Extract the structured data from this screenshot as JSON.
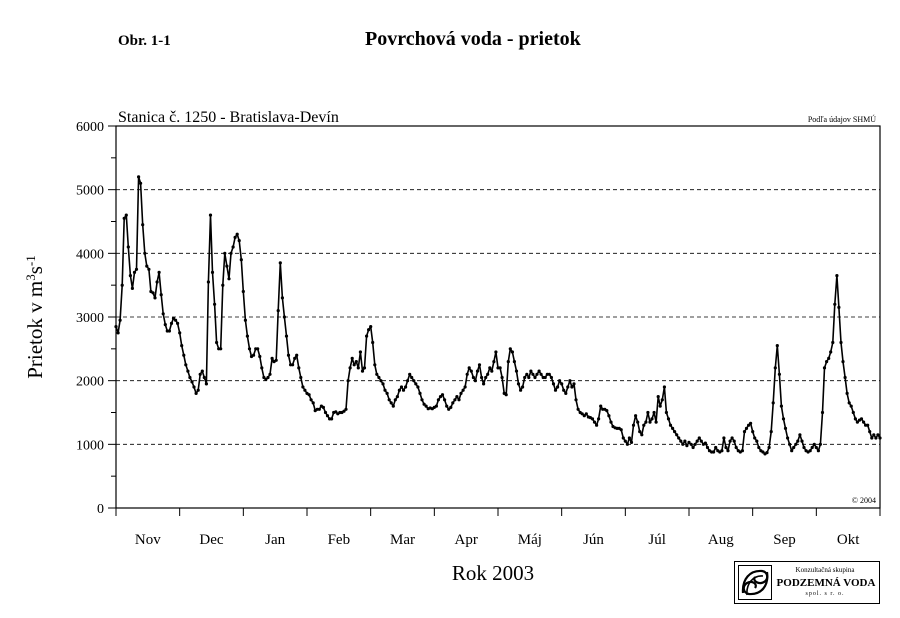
{
  "figure_label": "Obr. 1-1",
  "title": "Povrchová voda - prietok",
  "chart_data": {
    "type": "line",
    "title": "Povrchová voda - prietok",
    "subtitle": "Stanica č. 1250 - Bratislava-Devín",
    "source_note": "Podľa údajov SHMÚ",
    "copyright": "© 2004",
    "xlabel": "Rok 2003",
    "ylabel_main": "Prietok v m",
    "ylabel_sup1": "3",
    "ylabel_mid": "s",
    "ylabel_sup2": "-1",
    "ylim": [
      0,
      6000
    ],
    "yticks": [
      0,
      1000,
      2000,
      3000,
      4000,
      5000,
      6000
    ],
    "ytick_labels": [
      "0",
      "1000",
      "2000",
      "3000",
      "4000",
      "5000",
      "6000"
    ],
    "grid": "horizontal dashed at 1000–5000",
    "months": [
      "Nov",
      "Dec",
      "Jan",
      "Feb",
      "Mar",
      "Apr",
      "Máj",
      "Jún",
      "Júl",
      "Aug",
      "Sep",
      "Okt"
    ],
    "series": [
      {
        "values": [
          2850,
          2750,
          2950,
          3500,
          4550,
          4600,
          4100,
          3650,
          3450,
          3700,
          3750,
          5200,
          5100,
          4450,
          4000,
          3800,
          3750,
          3400,
          3380,
          3300,
          3550,
          3700,
          3350,
          3050,
          2880,
          2780,
          2780,
          2900,
          2980,
          2950,
          2900,
          2750,
          2550,
          2400,
          2250,
          2150,
          2050,
          1980,
          1900,
          1800,
          1850,
          2100,
          2150,
          2050,
          1950,
          3550,
          4600,
          3700,
          3200,
          2600,
          2500,
          2500,
          3500,
          4000,
          3800,
          3600,
          4000,
          4100,
          4250,
          4300,
          4200,
          3900,
          3400,
          2950,
          2700,
          2500,
          2380,
          2400,
          2500,
          2500,
          2380,
          2200,
          2050,
          2020,
          2050,
          2100,
          2350,
          2300,
          2320,
          3100,
          3850,
          3300,
          3000,
          2700,
          2400,
          2250,
          2250,
          2350,
          2400,
          2200,
          2050,
          1900,
          1850,
          1800,
          1780,
          1700,
          1650,
          1530,
          1550,
          1550,
          1600,
          1580,
          1500,
          1450,
          1400,
          1400,
          1500,
          1510,
          1480,
          1500,
          1500,
          1520,
          1550,
          2000,
          2200,
          2350,
          2250,
          2300,
          2200,
          2450,
          2150,
          2200,
          2700,
          2800,
          2850,
          2600,
          2250,
          2100,
          2050,
          2000,
          1950,
          1850,
          1800,
          1700,
          1650,
          1600,
          1700,
          1750,
          1850,
          1900,
          1850,
          1900,
          2000,
          2100,
          2050,
          2000,
          1950,
          1900,
          1800,
          1700,
          1630,
          1600,
          1560,
          1570,
          1560,
          1580,
          1600,
          1700,
          1750,
          1780,
          1700,
          1600,
          1550,
          1580,
          1650,
          1700,
          1750,
          1700,
          1800,
          1850,
          1900,
          2100,
          2200,
          2150,
          2050,
          2000,
          2150,
          2250,
          2050,
          1950,
          2050,
          2100,
          2200,
          2150,
          2300,
          2450,
          2200,
          2200,
          2050,
          1800,
          1780,
          2300,
          2500,
          2450,
          2300,
          2150,
          1950,
          1850,
          1900,
          2050,
          2100,
          2050,
          2150,
          2100,
          2050,
          2100,
          2150,
          2100,
          2050,
          2050,
          2100,
          2100,
          2050,
          1950,
          1850,
          1900,
          2000,
          1950,
          1850,
          1800,
          1900,
          2000,
          1900,
          1950,
          1700,
          1550,
          1500,
          1480,
          1450,
          1480,
          1430,
          1420,
          1400,
          1350,
          1300,
          1400,
          1600,
          1550,
          1550,
          1530,
          1450,
          1350,
          1280,
          1260,
          1250,
          1250,
          1230,
          1100,
          1050,
          1000,
          1100,
          1030,
          1300,
          1450,
          1350,
          1200,
          1150,
          1300,
          1350,
          1500,
          1350,
          1400,
          1500,
          1350,
          1750,
          1600,
          1700,
          1900,
          1500,
          1400,
          1300,
          1250,
          1200,
          1150,
          1100,
          1050,
          1000,
          1050,
          980,
          1030,
          1000,
          950,
          1000,
          1050,
          1100,
          1050,
          1000,
          1020,
          950,
          900,
          880,
          880,
          950,
          900,
          880,
          900,
          1100,
          950,
          900,
          1050,
          1100,
          1050,
          950,
          900,
          880,
          900,
          1200,
          1250,
          1300,
          1330,
          1200,
          1100,
          1050,
          950,
          900,
          880,
          850,
          870,
          950,
          1200,
          1650,
          2200,
          2550,
          2100,
          1600,
          1400,
          1250,
          1100,
          1000,
          900,
          950,
          1000,
          1050,
          1150,
          1050,
          950,
          900,
          880,
          900,
          950,
          1000,
          950,
          900,
          1000,
          1500,
          2200,
          2300,
          2350,
          2450,
          2600,
          3200,
          3650,
          3150,
          2600,
          2300,
          2050,
          1800,
          1650,
          1600,
          1500,
          1400,
          1350,
          1380,
          1400,
          1350,
          1300,
          1300,
          1200,
          1100,
          1150,
          1100,
          1150,
          1100
        ]
      }
    ]
  }
}
